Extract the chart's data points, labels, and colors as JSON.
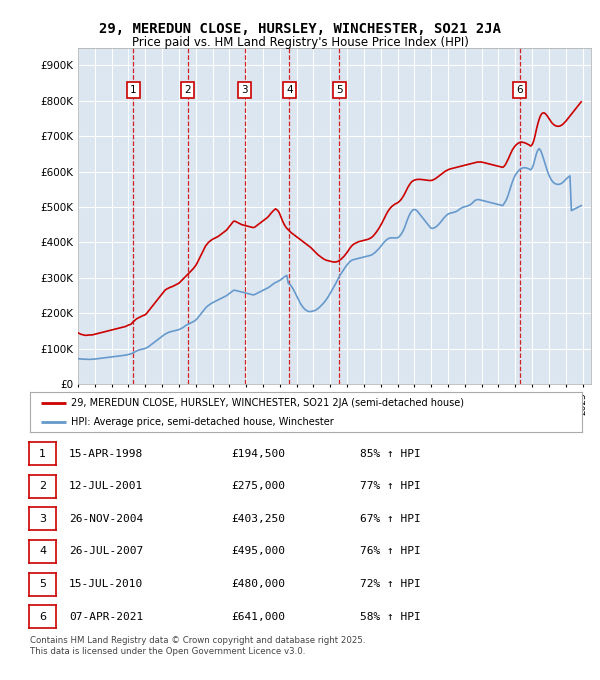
{
  "title": "29, MEREDUN CLOSE, HURSLEY, WINCHESTER, SO21 2JA",
  "subtitle": "Price paid vs. HM Land Registry's House Price Index (HPI)",
  "background_color": "#ffffff",
  "chart_bg_color": "#dce6f1",
  "grid_color": "#ffffff",
  "ylim": [
    0,
    950000
  ],
  "yticks": [
    0,
    100000,
    200000,
    300000,
    400000,
    500000,
    600000,
    700000,
    800000,
    900000
  ],
  "ytick_labels": [
    "£0",
    "£100K",
    "£200K",
    "£300K",
    "£400K",
    "£500K",
    "£600K",
    "£700K",
    "£800K",
    "£900K"
  ],
  "transactions": [
    {
      "num": 1,
      "date": "15-APR-1998",
      "date_x": 1998.29,
      "price": 194500,
      "pct": "85%"
    },
    {
      "num": 2,
      "date": "12-JUL-2001",
      "date_x": 2001.53,
      "price": 275000,
      "pct": "77%"
    },
    {
      "num": 3,
      "date": "26-NOV-2004",
      "date_x": 2004.9,
      "price": 403250,
      "pct": "67%"
    },
    {
      "num": 4,
      "date": "26-JUL-2007",
      "date_x": 2007.57,
      "price": 495000,
      "pct": "76%"
    },
    {
      "num": 5,
      "date": "15-JUL-2010",
      "date_x": 2010.54,
      "price": 480000,
      "pct": "72%"
    },
    {
      "num": 6,
      "date": "07-APR-2021",
      "date_x": 2021.27,
      "price": 641000,
      "pct": "58%"
    }
  ],
  "house_line_color": "#cc0000",
  "hpi_line_color": "#6699cc",
  "dashed_line_color": "#cc0000",
  "legend_label_house": "29, MEREDUN CLOSE, HURSLEY, WINCHESTER, SO21 2JA (semi-detached house)",
  "legend_label_hpi": "HPI: Average price, semi-detached house, Winchester",
  "table_rows": [
    [
      "1",
      "15-APR-1998",
      "£194,500",
      "85% ↑ HPI"
    ],
    [
      "2",
      "12-JUL-2001",
      "£275,000",
      "77% ↑ HPI"
    ],
    [
      "3",
      "26-NOV-2004",
      "£403,250",
      "67% ↑ HPI"
    ],
    [
      "4",
      "26-JUL-2007",
      "£495,000",
      "76% ↑ HPI"
    ],
    [
      "5",
      "15-JUL-2010",
      "£480,000",
      "72% ↑ HPI"
    ],
    [
      "6",
      "07-APR-2021",
      "£641,000",
      "58% ↑ HPI"
    ]
  ],
  "footnote": "Contains HM Land Registry data © Crown copyright and database right 2025.\nThis data is licensed under the Open Government Licence v3.0.",
  "xmin": 1995.0,
  "xmax": 2025.5
}
